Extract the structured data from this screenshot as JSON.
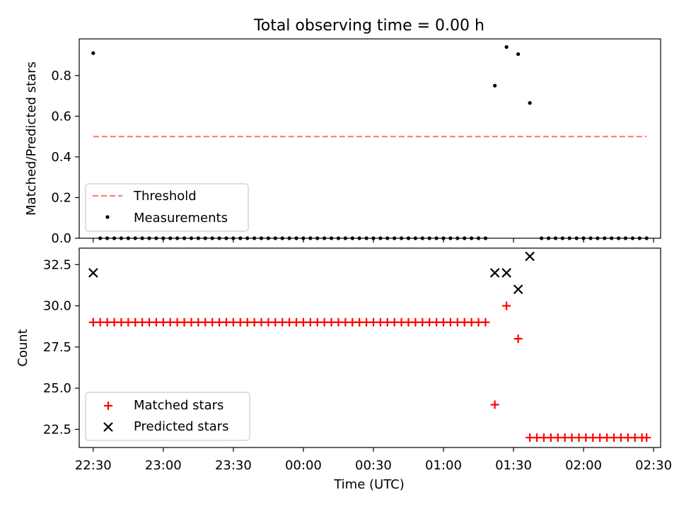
{
  "figure": {
    "title": "Total observing time = 0.00 h"
  },
  "chart_data": [
    {
      "type": "scatter",
      "ylabel": "Matched/Predicted stars",
      "ylim": [
        0,
        0.98
      ],
      "yticks": [
        "0.0",
        "0.2",
        "0.4",
        "0.6",
        "0.8"
      ],
      "ytick_values": [
        0,
        0.2,
        0.4,
        0.6,
        0.8
      ],
      "xlim": [
        "22:24",
        "02:33"
      ],
      "legend": {
        "placement": "lower-left",
        "entries": [
          "Threshold",
          "Measurements"
        ]
      },
      "threshold": {
        "name": "Threshold",
        "value": 0.5,
        "x_range": [
          "22:30",
          "02:27"
        ],
        "color": "#ff7f7f",
        "style": "dashed"
      },
      "series": [
        {
          "name": "Measurements",
          "color": "#000000",
          "points": [
            [
              "22:30",
              0.91
            ],
            [
              "22:33",
              0
            ],
            [
              "22:36",
              0
            ],
            [
              "22:39",
              0
            ],
            [
              "22:42",
              0
            ],
            [
              "22:45",
              0
            ],
            [
              "22:48",
              0
            ],
            [
              "22:51",
              0
            ],
            [
              "22:54",
              0
            ],
            [
              "22:57",
              0
            ],
            [
              "23:00",
              0
            ],
            [
              "23:03",
              0
            ],
            [
              "23:06",
              0
            ],
            [
              "23:09",
              0
            ],
            [
              "23:12",
              0
            ],
            [
              "23:15",
              0
            ],
            [
              "23:18",
              0
            ],
            [
              "23:21",
              0
            ],
            [
              "23:24",
              0
            ],
            [
              "23:27",
              0
            ],
            [
              "23:30",
              0
            ],
            [
              "23:33",
              0
            ],
            [
              "23:36",
              0
            ],
            [
              "23:39",
              0
            ],
            [
              "23:42",
              0
            ],
            [
              "23:45",
              0
            ],
            [
              "23:48",
              0
            ],
            [
              "23:51",
              0
            ],
            [
              "23:54",
              0
            ],
            [
              "23:57",
              0
            ],
            [
              "00:00",
              0
            ],
            [
              "00:03",
              0
            ],
            [
              "00:06",
              0
            ],
            [
              "00:09",
              0
            ],
            [
              "00:12",
              0
            ],
            [
              "00:15",
              0
            ],
            [
              "00:18",
              0
            ],
            [
              "00:21",
              0
            ],
            [
              "00:24",
              0
            ],
            [
              "00:27",
              0
            ],
            [
              "00:30",
              0
            ],
            [
              "00:33",
              0
            ],
            [
              "00:36",
              0
            ],
            [
              "00:39",
              0
            ],
            [
              "00:42",
              0
            ],
            [
              "00:45",
              0
            ],
            [
              "00:48",
              0
            ],
            [
              "00:51",
              0
            ],
            [
              "00:54",
              0
            ],
            [
              "00:57",
              0
            ],
            [
              "01:00",
              0
            ],
            [
              "01:03",
              0
            ],
            [
              "01:06",
              0
            ],
            [
              "01:09",
              0
            ],
            [
              "01:12",
              0
            ],
            [
              "01:15",
              0
            ],
            [
              "01:18",
              0
            ],
            [
              "01:22",
              0.75
            ],
            [
              "01:27",
              0.94
            ],
            [
              "01:32",
              0.905
            ],
            [
              "01:37",
              0.665
            ],
            [
              "01:42",
              0
            ],
            [
              "01:45",
              0
            ],
            [
              "01:48",
              0
            ],
            [
              "01:51",
              0
            ],
            [
              "01:54",
              0
            ],
            [
              "01:57",
              0
            ],
            [
              "02:00",
              0
            ],
            [
              "02:03",
              0
            ],
            [
              "02:06",
              0
            ],
            [
              "02:09",
              0
            ],
            [
              "02:12",
              0
            ],
            [
              "02:15",
              0
            ],
            [
              "02:18",
              0
            ],
            [
              "02:21",
              0
            ],
            [
              "02:24",
              0
            ],
            [
              "02:27",
              0
            ]
          ]
        }
      ]
    },
    {
      "type": "scatter",
      "ylabel": "Count",
      "xlabel": "Time (UTC)",
      "ylim": [
        21.4,
        33.5
      ],
      "yticks": [
        "22.5",
        "25.0",
        "27.5",
        "30.0",
        "32.5"
      ],
      "ytick_values": [
        22.5,
        25,
        27.5,
        30,
        32.5
      ],
      "xlim": [
        "22:24",
        "02:33"
      ],
      "xticks": [
        "22:30",
        "23:00",
        "23:30",
        "00:00",
        "00:30",
        "01:00",
        "01:30",
        "02:00",
        "02:30"
      ],
      "legend": {
        "placement": "lower-left",
        "entries": [
          "Matched stars",
          "Predicted stars"
        ]
      },
      "series": [
        {
          "name": "Matched stars",
          "marker": "plus",
          "color": "#ff0000",
          "points": [
            [
              "22:30",
              29
            ],
            [
              "22:33",
              29
            ],
            [
              "22:36",
              29
            ],
            [
              "22:39",
              29
            ],
            [
              "22:42",
              29
            ],
            [
              "22:45",
              29
            ],
            [
              "22:48",
              29
            ],
            [
              "22:51",
              29
            ],
            [
              "22:54",
              29
            ],
            [
              "22:57",
              29
            ],
            [
              "23:00",
              29
            ],
            [
              "23:03",
              29
            ],
            [
              "23:06",
              29
            ],
            [
              "23:09",
              29
            ],
            [
              "23:12",
              29
            ],
            [
              "23:15",
              29
            ],
            [
              "23:18",
              29
            ],
            [
              "23:21",
              29
            ],
            [
              "23:24",
              29
            ],
            [
              "23:27",
              29
            ],
            [
              "23:30",
              29
            ],
            [
              "23:33",
              29
            ],
            [
              "23:36",
              29
            ],
            [
              "23:39",
              29
            ],
            [
              "23:42",
              29
            ],
            [
              "23:45",
              29
            ],
            [
              "23:48",
              29
            ],
            [
              "23:51",
              29
            ],
            [
              "23:54",
              29
            ],
            [
              "23:57",
              29
            ],
            [
              "00:00",
              29
            ],
            [
              "00:03",
              29
            ],
            [
              "00:06",
              29
            ],
            [
              "00:09",
              29
            ],
            [
              "00:12",
              29
            ],
            [
              "00:15",
              29
            ],
            [
              "00:18",
              29
            ],
            [
              "00:21",
              29
            ],
            [
              "00:24",
              29
            ],
            [
              "00:27",
              29
            ],
            [
              "00:30",
              29
            ],
            [
              "00:33",
              29
            ],
            [
              "00:36",
              29
            ],
            [
              "00:39",
              29
            ],
            [
              "00:42",
              29
            ],
            [
              "00:45",
              29
            ],
            [
              "00:48",
              29
            ],
            [
              "00:51",
              29
            ],
            [
              "00:54",
              29
            ],
            [
              "00:57",
              29
            ],
            [
              "01:00",
              29
            ],
            [
              "01:03",
              29
            ],
            [
              "01:06",
              29
            ],
            [
              "01:09",
              29
            ],
            [
              "01:12",
              29
            ],
            [
              "01:15",
              29
            ],
            [
              "01:18",
              29
            ],
            [
              "01:22",
              24
            ],
            [
              "01:27",
              30
            ],
            [
              "01:32",
              28
            ],
            [
              "01:37",
              22
            ],
            [
              "01:40",
              22
            ],
            [
              "01:43",
              22
            ],
            [
              "01:46",
              22
            ],
            [
              "01:49",
              22
            ],
            [
              "01:52",
              22
            ],
            [
              "01:55",
              22
            ],
            [
              "01:58",
              22
            ],
            [
              "02:01",
              22
            ],
            [
              "02:04",
              22
            ],
            [
              "02:07",
              22
            ],
            [
              "02:10",
              22
            ],
            [
              "02:13",
              22
            ],
            [
              "02:16",
              22
            ],
            [
              "02:19",
              22
            ],
            [
              "02:22",
              22
            ],
            [
              "02:25",
              22
            ],
            [
              "02:27",
              22
            ]
          ]
        },
        {
          "name": "Predicted stars",
          "marker": "x",
          "color": "#000000",
          "points": [
            [
              "22:30",
              32
            ],
            [
              "01:22",
              32
            ],
            [
              "01:27",
              32
            ],
            [
              "01:32",
              31
            ],
            [
              "01:37",
              33
            ]
          ]
        }
      ]
    }
  ]
}
